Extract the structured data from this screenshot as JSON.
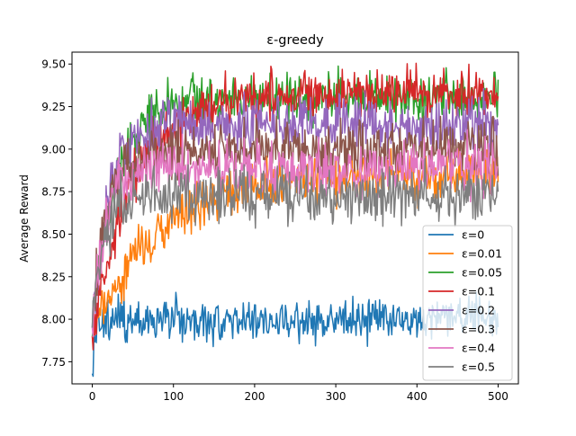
{
  "chart_data": {
    "type": "line",
    "title": "ε-greedy",
    "xlabel": "",
    "ylabel": "Average Reward",
    "xlim": [
      -25,
      525
    ],
    "ylim": [
      7.62,
      9.57
    ],
    "xticks": [
      0,
      100,
      200,
      300,
      400,
      500
    ],
    "yticks": [
      7.75,
      8.0,
      8.25,
      8.5,
      8.75,
      9.0,
      9.25,
      9.5
    ],
    "ytick_labels": [
      "7.75",
      "8.00",
      "8.25",
      "8.50",
      "8.75",
      "9.00",
      "9.25",
      "9.50"
    ],
    "grid": false,
    "legend_position": "lower-right",
    "n_steps": 501,
    "series": [
      {
        "name": "ε=0",
        "color": "#1f77b4",
        "start": 7.68,
        "plateau": 8.0,
        "rate": 0.3,
        "noise": 0.06
      },
      {
        "name": "ε=0.01",
        "color": "#ff7f0e",
        "start": 7.9,
        "plateau": 8.85,
        "rate": 0.013,
        "noise": 0.07
      },
      {
        "name": "ε=0.05",
        "color": "#2ca02c",
        "start": 7.9,
        "plateau": 9.3,
        "rate": 0.035,
        "noise": 0.07
      },
      {
        "name": "ε=0.1",
        "color": "#d62728",
        "start": 7.9,
        "plateau": 9.33,
        "rate": 0.02,
        "noise": 0.07
      },
      {
        "name": "ε=0.2",
        "color": "#9467bd",
        "start": 7.95,
        "plateau": 9.15,
        "rate": 0.05,
        "noise": 0.08
      },
      {
        "name": "ε=0.3",
        "color": "#8c564b",
        "start": 7.95,
        "plateau": 9.0,
        "rate": 0.06,
        "noise": 0.08
      },
      {
        "name": "ε=0.4",
        "color": "#e377c2",
        "start": 7.95,
        "plateau": 8.88,
        "rate": 0.07,
        "noise": 0.08
      },
      {
        "name": "ε=0.5",
        "color": "#7f7f7f",
        "start": 7.95,
        "plateau": 8.72,
        "rate": 0.08,
        "noise": 0.08
      }
    ]
  }
}
